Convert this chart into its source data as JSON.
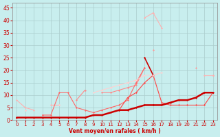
{
  "x": [
    0,
    1,
    2,
    3,
    4,
    5,
    6,
    7,
    8,
    9,
    10,
    11,
    12,
    13,
    14,
    15,
    16,
    17,
    18,
    19,
    20,
    21,
    22,
    23
  ],
  "series": [
    {
      "y": [
        8,
        5,
        4,
        null,
        null,
        null,
        null,
        null,
        null,
        null,
        null,
        null,
        null,
        null,
        null,
        null,
        null,
        null,
        null,
        null,
        null,
        null,
        null,
        null
      ],
      "color": "#FFB0B0",
      "lw": 0.8
    },
    {
      "y": [
        null,
        null,
        null,
        null,
        null,
        null,
        null,
        null,
        null,
        null,
        11,
        11,
        12,
        13,
        14,
        21,
        null,
        null,
        null,
        null,
        null,
        null,
        null,
        null
      ],
      "color": "#FF8888",
      "lw": 0.8
    },
    {
      "y": [
        null,
        null,
        null,
        null,
        null,
        null,
        null,
        null,
        null,
        null,
        null,
        null,
        null,
        null,
        null,
        41,
        43,
        37,
        null,
        null,
        null,
        null,
        null,
        18
      ],
      "color": "#FFB0B0",
      "lw": 0.8
    },
    {
      "y": [
        null,
        4,
        null,
        null,
        6,
        6,
        null,
        null,
        null,
        null,
        null,
        null,
        null,
        null,
        null,
        null,
        null,
        null,
        null,
        null,
        null,
        null,
        null,
        null
      ],
      "color": "#FFB0B0",
      "lw": 0.8
    },
    {
      "y": [
        null,
        null,
        null,
        2,
        2,
        11,
        11,
        5,
        4,
        3,
        4,
        5,
        6,
        8,
        15,
        21,
        null,
        null,
        null,
        null,
        null,
        null,
        null,
        null
      ],
      "color": "#FF6666",
      "lw": 0.8
    },
    {
      "y": [
        null,
        null,
        null,
        null,
        null,
        null,
        null,
        null,
        null,
        null,
        null,
        null,
        null,
        null,
        null,
        null,
        null,
        null,
        null,
        null,
        null,
        21,
        null,
        18
      ],
      "color": "#FF9999",
      "lw": 0.8
    },
    {
      "y": [
        null,
        null,
        null,
        null,
        null,
        null,
        null,
        null,
        null,
        null,
        null,
        null,
        4,
        9,
        11,
        15,
        18,
        7,
        6,
        6,
        6,
        6,
        6,
        11
      ],
      "color": "#FF4444",
      "lw": 0.8
    },
    {
      "y": [
        null,
        null,
        null,
        null,
        null,
        null,
        null,
        null,
        null,
        null,
        null,
        null,
        null,
        null,
        null,
        25,
        18,
        null,
        null,
        null,
        null,
        null,
        null,
        null
      ],
      "color": "#CC0000",
      "lw": 1.2
    },
    {
      "y": [
        1,
        1,
        1,
        1,
        1,
        1,
        1,
        1,
        1,
        2,
        2,
        3,
        4,
        4,
        5,
        6,
        6,
        6,
        7,
        8,
        8,
        9,
        11,
        11
      ],
      "color": "#CC0000",
      "lw": 1.8
    },
    {
      "y": [
        null,
        null,
        null,
        null,
        null,
        null,
        null,
        8,
        12,
        null,
        null,
        null,
        null,
        null,
        null,
        null,
        null,
        null,
        null,
        null,
        null,
        null,
        null,
        null
      ],
      "color": "#FF8888",
      "lw": 0.8
    },
    {
      "y": [
        null,
        null,
        null,
        null,
        null,
        null,
        null,
        null,
        null,
        null,
        null,
        null,
        null,
        null,
        null,
        null,
        28,
        null,
        null,
        null,
        null,
        null,
        null,
        null
      ],
      "color": "#FF9999",
      "lw": 0.8
    },
    {
      "y": [
        null,
        4,
        null,
        null,
        null,
        6,
        null,
        null,
        null,
        11,
        12,
        13,
        14,
        15,
        16,
        18,
        18,
        19,
        null,
        null,
        null,
        null,
        null,
        null
      ],
      "color": "#FFD0D0",
      "lw": 0.8
    },
    {
      "y": [
        null,
        null,
        null,
        null,
        null,
        null,
        null,
        null,
        null,
        null,
        null,
        null,
        null,
        null,
        null,
        null,
        null,
        null,
        null,
        null,
        null,
        null,
        18,
        18
      ],
      "color": "#FFB0B0",
      "lw": 0.8
    }
  ],
  "bg_color": "#C8EEEE",
  "grid_color": "#AACCCC",
  "axis_color": "#CC0000",
  "tick_color": "#CC0000",
  "xlabel": "Vent moyen/en rafales ( km/h )",
  "ylabel_ticks": [
    0,
    5,
    10,
    15,
    20,
    25,
    30,
    35,
    40,
    45
  ],
  "xlim": [
    -0.5,
    23.5
  ],
  "ylim": [
    0,
    47
  ]
}
